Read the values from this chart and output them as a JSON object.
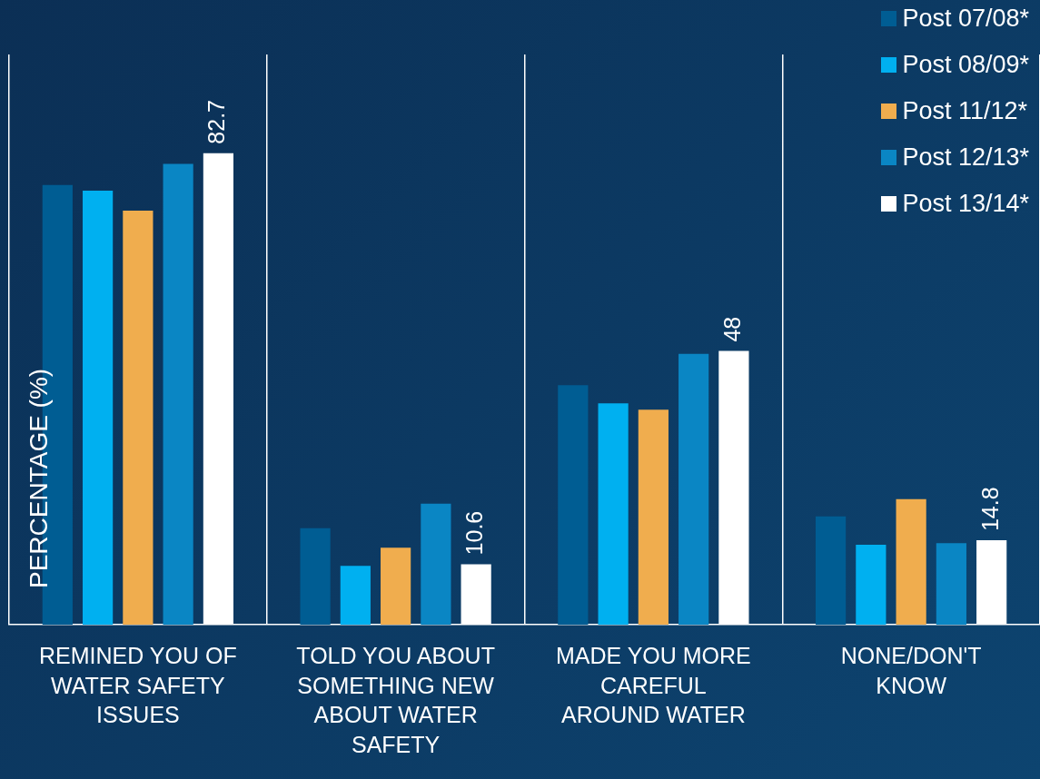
{
  "chart_data": {
    "type": "bar",
    "ylabel": "PERCENTAGE (%)",
    "categories": [
      "REMINED YOU OF WATER SAFETY ISSUES",
      "TOLD YOU ABOUT SOMETHING NEW ABOUT WATER SAFETY",
      "MADE YOU MORE CAREFUL AROUND WATER",
      "NONE/DON'T KNOW"
    ],
    "series": [
      {
        "name": "Post 07/08*",
        "color": "#005d93",
        "values": [
          77.1,
          16.9,
          42.0,
          19.0
        ]
      },
      {
        "name": "Post 08/09*",
        "color": "#00b0f0",
        "values": [
          76.1,
          10.3,
          38.8,
          14.0
        ]
      },
      {
        "name": "Post 11/12*",
        "color": "#f0ad4e",
        "values": [
          72.6,
          13.5,
          37.7,
          22.0
        ]
      },
      {
        "name": "Post 12/13*",
        "color": "#0a86c4",
        "values": [
          80.8,
          21.2,
          47.5,
          14.3
        ]
      },
      {
        "name": "Post 13/14*",
        "color": "#ffffff",
        "values": [
          82.7,
          10.6,
          48,
          14.8
        ],
        "value_labels": [
          "82.7",
          "10.6",
          "48",
          "14.8"
        ]
      }
    ],
    "ylim": [
      0,
      100
    ],
    "grid": "x",
    "legend": "top right",
    "tick_labels": "x"
  }
}
